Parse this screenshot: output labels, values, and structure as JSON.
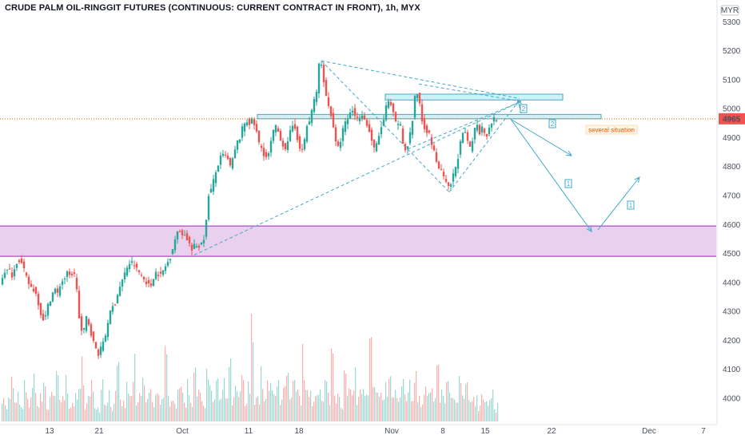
{
  "chart_data": {
    "type": "candlestick",
    "title": "CRUDE PALM OIL-RINGGIT FUTURES (CONTINUOUS: CURRENT CONTRACT IN FRONT), 1h, MYX",
    "currency": "MYR",
    "last_price": "4965",
    "y_ticks": [
      4000,
      4100,
      4200,
      4300,
      4400,
      4500,
      4600,
      4700,
      4800,
      4900,
      5000,
      5100,
      5200,
      5300
    ],
    "ylim": [
      3920,
      5320
    ],
    "x_ticks": [
      "13",
      "21",
      "Oct",
      "11",
      "18",
      "Nov",
      "8",
      "15",
      "22",
      "Dec",
      "7"
    ],
    "support_zone": [
      4490,
      4595
    ],
    "resistance_bands": [
      [
        4965,
        4980
      ],
      [
        5030,
        5050
      ]
    ],
    "price_path": [
      [
        0,
        4400
      ],
      [
        6,
        4440
      ],
      [
        12,
        4440
      ],
      [
        16,
        4420
      ],
      [
        20,
        4470
      ],
      [
        25,
        4480
      ],
      [
        30,
        4440
      ],
      [
        35,
        4400
      ],
      [
        40,
        4380
      ],
      [
        44,
        4370
      ],
      [
        48,
        4330
      ],
      [
        52,
        4280
      ],
      [
        56,
        4270
      ],
      [
        60,
        4320
      ],
      [
        64,
        4350
      ],
      [
        68,
        4380
      ],
      [
        72,
        4360
      ],
      [
        76,
        4400
      ],
      [
        80,
        4410
      ],
      [
        84,
        4430
      ],
      [
        88,
        4420
      ],
      [
        92,
        4440
      ],
      [
        96,
        4380
      ],
      [
        100,
        4240
      ],
      [
        104,
        4220
      ],
      [
        108,
        4280
      ],
      [
        112,
        4250
      ],
      [
        116,
        4200
      ],
      [
        120,
        4170
      ],
      [
        124,
        4150
      ],
      [
        128,
        4190
      ],
      [
        132,
        4220
      ],
      [
        136,
        4280
      ],
      [
        140,
        4310
      ],
      [
        144,
        4330
      ],
      [
        148,
        4370
      ],
      [
        152,
        4400
      ],
      [
        156,
        4430
      ],
      [
        160,
        4460
      ],
      [
        164,
        4470
      ],
      [
        168,
        4460
      ],
      [
        172,
        4440
      ],
      [
        176,
        4430
      ],
      [
        180,
        4410
      ],
      [
        184,
        4400
      ],
      [
        188,
        4380
      ],
      [
        192,
        4420
      ],
      [
        196,
        4440
      ],
      [
        200,
        4420
      ],
      [
        204,
        4440
      ],
      [
        208,
        4460
      ],
      [
        212,
        4480
      ],
      [
        216,
        4520
      ],
      [
        220,
        4560
      ],
      [
        224,
        4580
      ],
      [
        228,
        4570
      ],
      [
        232,
        4560
      ],
      [
        236,
        4540
      ],
      [
        240,
        4510
      ],
      [
        244,
        4530
      ],
      [
        248,
        4520
      ],
      [
        252,
        4540
      ],
      [
        256,
        4560
      ],
      [
        258,
        4610
      ],
      [
        260,
        4700
      ],
      [
        264,
        4720
      ],
      [
        268,
        4760
      ],
      [
        272,
        4800
      ],
      [
        276,
        4830
      ],
      [
        280,
        4840
      ],
      [
        284,
        4830
      ],
      [
        288,
        4800
      ],
      [
        292,
        4830
      ],
      [
        296,
        4880
      ],
      [
        300,
        4900
      ],
      [
        304,
        4940
      ],
      [
        308,
        4960
      ],
      [
        312,
        4950
      ],
      [
        316,
        4960
      ],
      [
        320,
        4930
      ],
      [
        324,
        4880
      ],
      [
        328,
        4860
      ],
      [
        332,
        4830
      ],
      [
        336,
        4840
      ],
      [
        340,
        4900
      ],
      [
        344,
        4940
      ],
      [
        348,
        4920
      ],
      [
        352,
        4890
      ],
      [
        356,
        4860
      ],
      [
        360,
        4880
      ],
      [
        364,
        4930
      ],
      [
        368,
        4950
      ],
      [
        372,
        4900
      ],
      [
        376,
        4840
      ],
      [
        380,
        4880
      ],
      [
        384,
        4940
      ],
      [
        388,
        4960
      ],
      [
        392,
        5020
      ],
      [
        396,
        5060
      ],
      [
        400,
        5180
      ],
      [
        404,
        5120
      ],
      [
        408,
        5040
      ],
      [
        412,
        5000
      ],
      [
        416,
        4960
      ],
      [
        420,
        4880
      ],
      [
        424,
        4860
      ],
      [
        428,
        4920
      ],
      [
        432,
        4950
      ],
      [
        436,
        4970
      ],
      [
        440,
        5000
      ],
      [
        444,
        4980
      ],
      [
        448,
        4960
      ],
      [
        452,
        4990
      ],
      [
        456,
        4960
      ],
      [
        460,
        4940
      ],
      [
        464,
        4900
      ],
      [
        468,
        4860
      ],
      [
        472,
        4880
      ],
      [
        476,
        4930
      ],
      [
        480,
        4960
      ],
      [
        484,
        5020
      ],
      [
        488,
        5020
      ],
      [
        492,
        4980
      ],
      [
        496,
        4940
      ],
      [
        500,
        4960
      ],
      [
        504,
        4880
      ],
      [
        508,
        4850
      ],
      [
        512,
        4900
      ],
      [
        516,
        4960
      ],
      [
        520,
        5060
      ],
      [
        524,
        5040
      ],
      [
        528,
        4960
      ],
      [
        532,
        4930
      ],
      [
        536,
        4920
      ],
      [
        540,
        4880
      ],
      [
        544,
        4840
      ],
      [
        548,
        4800
      ],
      [
        552,
        4780
      ],
      [
        556,
        4760
      ],
      [
        560,
        4720
      ],
      [
        564,
        4740
      ],
      [
        568,
        4780
      ],
      [
        572,
        4820
      ],
      [
        576,
        4880
      ],
      [
        580,
        4920
      ],
      [
        584,
        4900
      ],
      [
        588,
        4860
      ],
      [
        592,
        4900
      ],
      [
        596,
        4960
      ],
      [
        600,
        4920
      ],
      [
        604,
        4940
      ],
      [
        608,
        4900
      ],
      [
        612,
        4940
      ],
      [
        616,
        4960
      ],
      [
        620,
        4965
      ]
    ],
    "volume_profile": [
      30,
      15,
      22,
      40,
      18,
      25,
      12,
      35,
      20,
      28,
      45,
      16,
      24,
      38,
      14,
      30,
      22,
      50,
      18,
      26,
      42,
      20,
      15,
      32,
      28,
      60,
      18,
      24,
      36,
      20,
      14,
      44,
      22,
      30,
      16,
      26,
      48,
      20,
      18,
      34,
      24,
      55,
      16,
      28,
      40,
      22,
      30,
      18,
      36,
      26,
      20,
      62,
      24,
      32,
      18,
      44,
      28,
      22,
      38,
      20,
      70,
      26,
      34,
      18,
      48,
      30,
      24,
      42,
      20,
      36,
      28,
      52,
      22,
      30,
      26,
      40,
      18,
      34,
      100,
      28,
      24,
      46,
      20,
      38,
      32,
      26,
      56,
      22,
      30,
      44,
      20,
      36,
      28,
      24,
      64,
      26,
      34,
      22,
      40,
      30,
      20,
      38,
      26,
      72,
      28,
      34,
      20,
      44,
      30,
      26,
      50,
      22,
      36,
      28,
      24,
      80,
      30,
      26,
      40,
      22,
      34,
      48,
      26,
      30,
      20,
      44,
      28,
      36,
      24,
      56,
      30,
      22,
      40,
      26,
      32,
      20,
      46,
      28,
      24,
      36,
      30,
      22,
      18,
      40,
      26,
      32,
      20,
      28,
      24,
      16,
      34,
      22,
      18,
      26,
      14,
      30,
      20,
      24,
      12,
      18
    ],
    "annotations": [
      {
        "label": "2",
        "kind": "scenario"
      },
      {
        "label": "2",
        "kind": "scenario"
      },
      {
        "label": "1",
        "kind": "scenario"
      },
      {
        "label": "1",
        "kind": "scenario"
      },
      {
        "label": "several situation",
        "kind": "note"
      }
    ],
    "colors": {
      "up": "#26a69a",
      "down": "#ef5350",
      "zone_fill": "#e8d0ee",
      "zone_border": "#9c27b0",
      "band_fill": "#d4f0f7",
      "band_border": "#3fa9c9",
      "arrow": "#3fa9c9",
      "note_text": "#e65100",
      "price_line": "#ef6c00"
    },
    "grid": false
  }
}
